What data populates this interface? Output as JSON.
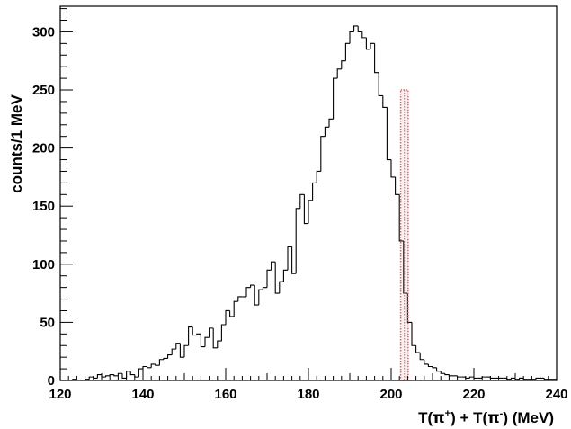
{
  "chart_data": {
    "type": "bar",
    "title": "",
    "xlabel": "",
    "ylabel": "counts/1 MeV",
    "xlabel_parts": {
      "t1": "T(",
      "pi": "π",
      "sup1": "+",
      "mid": ") + T(",
      "sup2": "-",
      "end": ") (MeV)"
    },
    "xlim": [
      120,
      240
    ],
    "ylim": [
      0,
      322
    ],
    "x_ticks": [
      120,
      140,
      160,
      180,
      200,
      220,
      240
    ],
    "y_ticks": [
      0,
      50,
      100,
      150,
      200,
      250,
      300
    ],
    "bin_width": 1,
    "x": [
      120,
      121,
      122,
      123,
      124,
      125,
      126,
      127,
      128,
      129,
      130,
      131,
      132,
      133,
      134,
      135,
      136,
      137,
      138,
      139,
      140,
      141,
      142,
      143,
      144,
      145,
      146,
      147,
      148,
      149,
      150,
      151,
      152,
      153,
      154,
      155,
      156,
      157,
      158,
      159,
      160,
      161,
      162,
      163,
      164,
      165,
      166,
      167,
      168,
      169,
      170,
      171,
      172,
      173,
      174,
      175,
      176,
      177,
      178,
      179,
      180,
      181,
      182,
      183,
      184,
      185,
      186,
      187,
      188,
      189,
      190,
      191,
      192,
      193,
      194,
      195,
      196,
      197,
      198,
      199,
      200,
      201,
      202,
      203,
      204,
      205,
      206,
      207,
      208,
      209,
      210,
      211,
      212,
      213,
      214,
      215,
      216,
      217,
      218,
      219,
      220,
      221,
      222,
      223,
      224,
      225,
      226,
      227,
      228,
      229,
      230,
      231,
      232,
      233,
      234,
      235,
      236,
      237,
      238,
      239
    ],
    "values": [
      0,
      0,
      0,
      1,
      0,
      0,
      1,
      3,
      2,
      5,
      3,
      4,
      5,
      4,
      6,
      2,
      8,
      5,
      3,
      10,
      12,
      11,
      14,
      13,
      18,
      19,
      22,
      27,
      32,
      20,
      30,
      46,
      39,
      40,
      29,
      37,
      45,
      28,
      34,
      48,
      60,
      55,
      68,
      72,
      72,
      80,
      82,
      65,
      78,
      80,
      95,
      102,
      75,
      85,
      95,
      115,
      92,
      148,
      160,
      135,
      155,
      170,
      180,
      210,
      218,
      225,
      260,
      268,
      275,
      290,
      300,
      305,
      300,
      295,
      285,
      290,
      265,
      245,
      235,
      190,
      175,
      160,
      120,
      75,
      50,
      30,
      24,
      18,
      14,
      12,
      11,
      8,
      6,
      5,
      4,
      4,
      3,
      3,
      2,
      3,
      2,
      2,
      3,
      3,
      2,
      2,
      2,
      2,
      1,
      2,
      1,
      2,
      1,
      1,
      1,
      2,
      2,
      1,
      1,
      1
    ],
    "highlight": {
      "type": "band",
      "x_range": [
        202.3,
        204.1
      ],
      "y_top": 250,
      "color": "#e06060"
    },
    "grid": false,
    "legend": "none",
    "line_color": "#000000"
  }
}
